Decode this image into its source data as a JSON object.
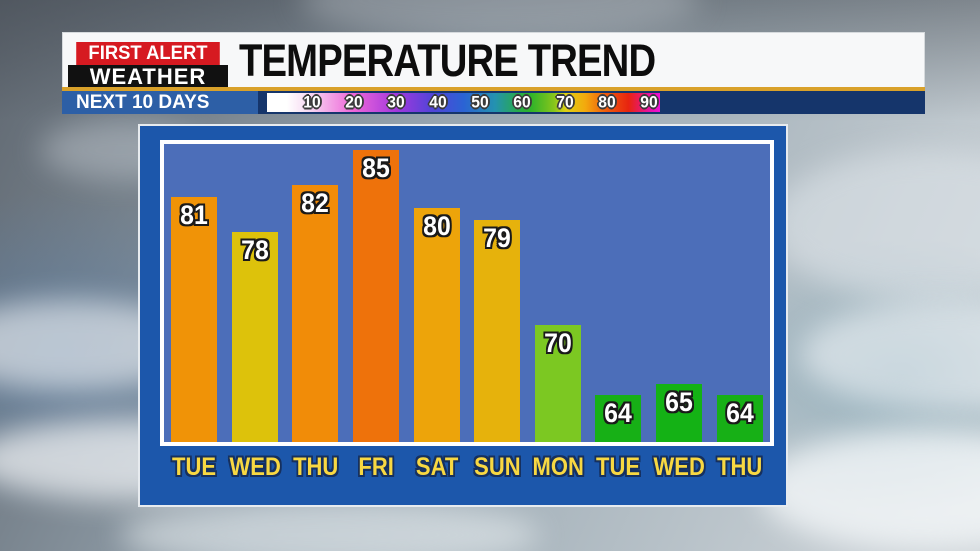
{
  "branding": {
    "first_alert": "FIRST ALERT",
    "weather": "WEATHER"
  },
  "header": {
    "title": "TEMPERATURE TREND",
    "period_label": "NEXT 10 DAYS"
  },
  "scale": {
    "labels": [
      "10",
      "20",
      "30",
      "40",
      "50",
      "60",
      "70",
      "80",
      "90"
    ]
  },
  "chart_data": {
    "type": "bar",
    "title": "TEMPERATURE TREND",
    "subtitle": "NEXT 10 DAYS",
    "categories": [
      "TUE",
      "WED",
      "THU",
      "FRI",
      "SAT",
      "SUN",
      "MON",
      "TUE",
      "WED",
      "THU"
    ],
    "values": [
      81,
      78,
      82,
      85,
      80,
      79,
      70,
      64,
      65,
      64
    ],
    "ylim": [
      60,
      85.5
    ],
    "grid": false,
    "legend": "horizontal temperature color scale 10-90 in header",
    "bar_colors": [
      "#f09307",
      "#ddc20b",
      "#f18c08",
      "#ee720b",
      "#eda40a",
      "#e6b20c",
      "#7cc822",
      "#17b016",
      "#14b215",
      "#17b016"
    ],
    "plot_background": "#4c6eb9",
    "panel_background": "#1c57ab"
  },
  "colors": {
    "header_band": "#f7f8f9",
    "accent_gold": "#d9a12a",
    "navy_band": "#15356b",
    "period_box_blue": "#2d5fa6",
    "logo_red": "#d61a21",
    "logo_black": "#111111",
    "day_label_yellow": "#f8d842",
    "value_label_white": "#ffffff"
  }
}
